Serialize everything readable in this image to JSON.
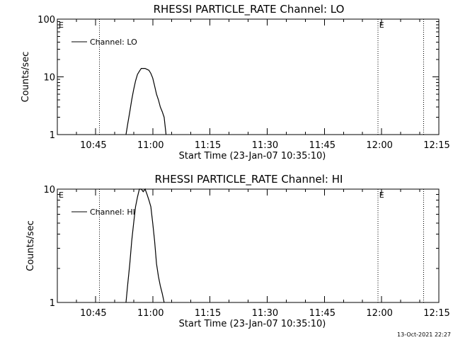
{
  "chart_data": [
    {
      "type": "line",
      "title": "RHESSI PARTICLE_RATE Channel: LO",
      "xlabel": "Start Time (23-Jan-07 10:35:10)",
      "ylabel": "Counts/sec",
      "yscale": "log",
      "ylim": [
        1,
        100
      ],
      "yticks": [
        {
          "v": 1,
          "label": "1"
        },
        {
          "v": 10,
          "label": "10"
        },
        {
          "v": 100,
          "label": "100"
        }
      ],
      "xlim": [
        "10:35",
        "12:15"
      ],
      "xticks": [
        "10:45",
        "11:00",
        "11:15",
        "11:30",
        "11:45",
        "12:00",
        "12:15"
      ],
      "legend": {
        "label": "Channel: LO",
        "placement": "top-left"
      },
      "markers": [
        {
          "time": "10:35",
          "label": "E"
        },
        {
          "time": "10:46",
          "label": ""
        },
        {
          "time": "11:59",
          "label": "E"
        },
        {
          "time": "12:11",
          "label": ""
        }
      ],
      "series": [
        {
          "x": [
            "10:53",
            "10:53.5",
            "10:54",
            "10:54.5",
            "10:55",
            "10:55.5",
            "10:56",
            "10:56.5",
            "10:57",
            "10:57.5",
            "10:58",
            "10:58.5",
            "10:59",
            "10:59.5",
            "11:00",
            "11:00.5",
            "11:01",
            "11:01.5",
            "11:02",
            "11:02.5",
            "11:03",
            "11:03.5"
          ],
          "y": [
            1,
            1.6,
            2.5,
            4,
            6,
            8.5,
            11,
            12.5,
            14,
            14,
            14,
            13.5,
            13,
            11.5,
            9.5,
            7,
            5,
            4,
            3,
            2.5,
            2,
            1
          ]
        }
      ]
    },
    {
      "type": "line",
      "title": "RHESSI PARTICLE_RATE Channel: HI",
      "xlabel": "Start Time (23-Jan-07 10:35:10)",
      "ylabel": "Counts/sec",
      "yscale": "log",
      "ylim": [
        1,
        10
      ],
      "yticks": [
        {
          "v": 1,
          "label": "1"
        },
        {
          "v": 10,
          "label": "10"
        }
      ],
      "xlim": [
        "10:35",
        "12:15"
      ],
      "xticks": [
        "10:45",
        "11:00",
        "11:15",
        "11:30",
        "11:45",
        "12:00",
        "12:15"
      ],
      "legend": {
        "label": "Channel: HI",
        "placement": "top-left"
      },
      "markers": [
        {
          "time": "10:35",
          "label": "E"
        },
        {
          "time": "10:46",
          "label": ""
        },
        {
          "time": "11:59",
          "label": "E"
        },
        {
          "time": "12:11",
          "label": ""
        }
      ],
      "series": [
        {
          "x": [
            "10:53",
            "10:53.5",
            "10:54",
            "10:54.5",
            "10:55",
            "10:55.5",
            "10:56",
            "10:56.5",
            "10:57",
            "10:57.5",
            "10:58",
            "10:58.5",
            "10:59",
            "10:59.5",
            "11:00",
            "11:00.5",
            "11:01",
            "11:01.5",
            "11:02",
            "11:02.5",
            "11:03"
          ],
          "y": [
            1,
            1.5,
            2.2,
            3.5,
            5,
            7,
            8.5,
            10,
            10,
            9.5,
            10,
            9,
            8,
            7,
            5,
            3.5,
            2.2,
            1.7,
            1.4,
            1.2,
            1
          ]
        }
      ]
    }
  ],
  "footer": {
    "timestamp": "13-Oct-2021 22:27"
  }
}
